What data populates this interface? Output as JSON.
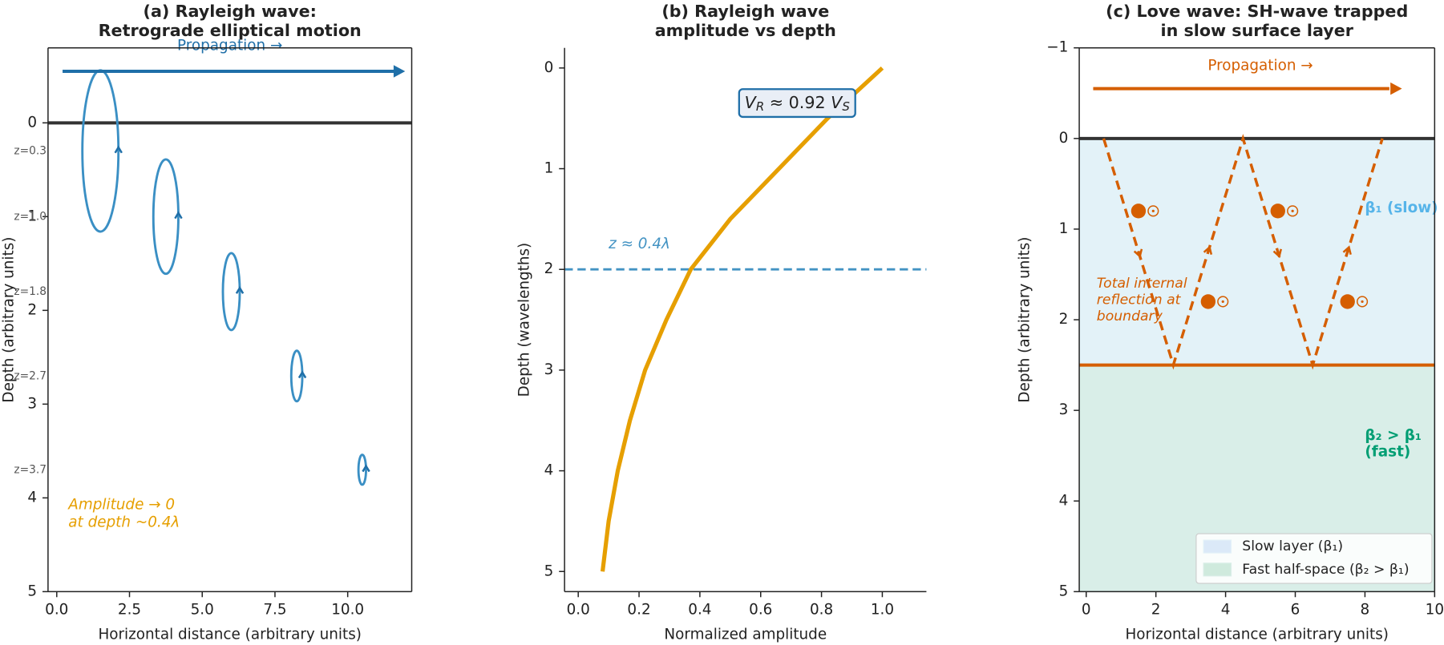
{
  "chart_data": [
    {
      "type": "ellipses",
      "title": [
        "(a) Rayleigh wave:",
        "Retrograde elliptical motion"
      ],
      "xlabel": "Horizontal distance (arbitrary units)",
      "ylabel": "Depth (arbitrary units)",
      "xlim": [
        -0.3,
        12.2
      ],
      "ylim": [
        5,
        -0.8
      ],
      "xticks": [
        {
          "value": 0,
          "label": "0.0"
        },
        {
          "value": 2.5,
          "label": "2.5"
        },
        {
          "value": 5,
          "label": "5.0"
        },
        {
          "value": 7.5,
          "label": "7.5"
        },
        {
          "value": 10,
          "label": "10.0"
        }
      ],
      "yticks": [
        0,
        1,
        2,
        3,
        4,
        5
      ],
      "frame": true,
      "color": "#3a8fc4",
      "arrow_color": "#1f6fa8",
      "surface": 0,
      "ellipses": {
        "x": [
          1.5,
          3.75,
          6,
          8.25,
          10.5
        ],
        "z": [
          0.3,
          1.0,
          1.8,
          2.7,
          3.7
        ],
        "a": [
          0.62,
          0.43,
          0.29,
          0.19,
          0.13
        ],
        "b": [
          0.86,
          0.61,
          0.41,
          0.27,
          0.16
        ],
        "labels": [
          "z=0.3",
          "z=1.0",
          "z=1.8",
          "z=2.7",
          "z=3.7"
        ]
      },
      "arrow_label": "Propagation →",
      "annotation": [
        "Amplitude → 0",
        "at depth ~0.4λ"
      ],
      "annotation_color": "#E69F00"
    },
    {
      "type": "line",
      "title": [
        "(b) Rayleigh wave",
        "amplitude vs depth"
      ],
      "xlabel": "Normalized amplitude",
      "ylabel": "Depth (wavelengths)",
      "xlim": [
        -0.045,
        1.145
      ],
      "ylim": [
        5.2,
        -0.2
      ],
      "xticks": [
        {
          "value": 0,
          "label": "0.0"
        },
        {
          "value": 0.2,
          "label": "0.2"
        },
        {
          "value": 0.4,
          "label": "0.4"
        },
        {
          "value": 0.6,
          "label": "0.6"
        },
        {
          "value": 0.8,
          "label": "0.8"
        },
        {
          "value": 1,
          "label": "1.0"
        }
      ],
      "yticks": [
        0,
        1,
        2,
        3,
        4,
        5
      ],
      "frame": false,
      "color": "#E69F00",
      "x": [
        1.0,
        0.82,
        0.66,
        0.5,
        0.37,
        0.29,
        0.22,
        0.17,
        0.13,
        0.1,
        0.08
      ],
      "y": [
        0,
        0.5,
        1,
        1.5,
        2,
        2.5,
        3,
        3.5,
        4,
        4.5,
        5
      ],
      "hline": {
        "value": 2,
        "color": "#4393c3",
        "label": "z ≈ 0.4λ"
      },
      "box_label": [
        "V",
        "R",
        " ≈ 0.92 ",
        "V",
        "S"
      ],
      "box_color": "#1f6fa8"
    },
    {
      "type": "layers",
      "title": [
        "(c) Love wave: SH-wave trapped",
        "in slow surface layer"
      ],
      "xlabel": "Horizontal distance (arbitrary units)",
      "ylabel": "Depth (arbitrary units)",
      "xlim": [
        -0.2,
        10
      ],
      "ylim": [
        5,
        -1
      ],
      "xticks": [
        0,
        2,
        4,
        6,
        8,
        10
      ],
      "yticks": [
        {
          "value": -1,
          "label": "−1"
        },
        0,
        1,
        2,
        3,
        4,
        5
      ],
      "frame": true,
      "color": "#D55E00",
      "surface": 0,
      "boundary": 2.5,
      "layers": [
        {
          "name": "Slow layer (β₁)",
          "color": "#e3f2f8",
          "patch": "#dbe9f8",
          "label": [
            "β₁ (slow)"
          ],
          "text_color": "#56B4E9"
        },
        {
          "name": "Fast half-space (β₂ > β₁)",
          "color": "#d9eee8",
          "patch": "#cfeadd",
          "label": [
            "β₂ > β₁",
            "(fast)"
          ],
          "text_color": "#009E73"
        }
      ],
      "arrow_label": "Propagation →",
      "annotation": [
        "Total internal",
        "reflection at",
        "boundary"
      ],
      "legend": "lower right"
    }
  ]
}
